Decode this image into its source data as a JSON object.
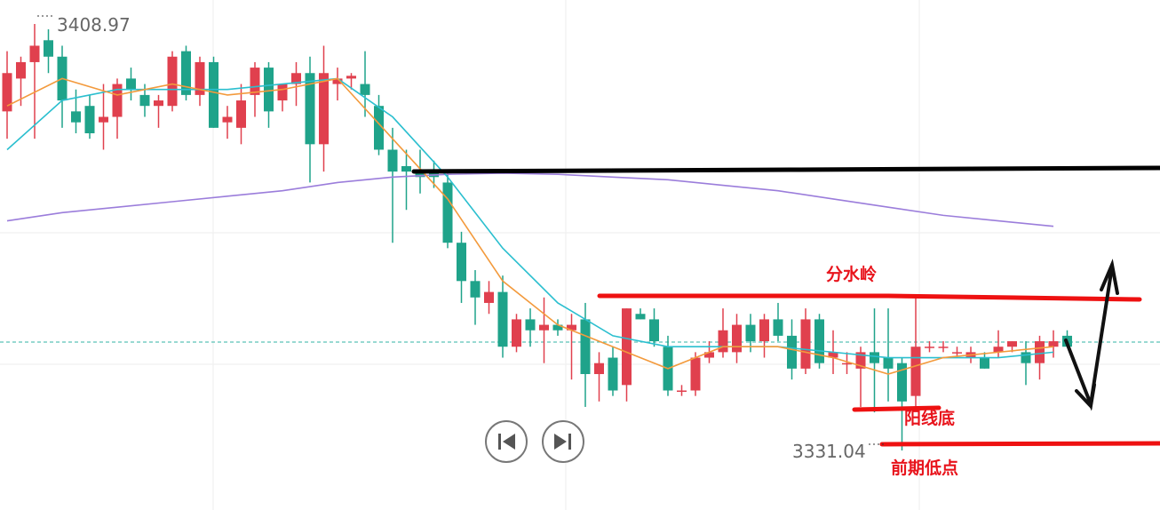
{
  "chart_data": {
    "type": "candlestick",
    "up_color": "#e0404e",
    "down_color": "#1fa38a",
    "open": [
      3393,
      3399,
      3402,
      3406,
      3403,
      3393,
      3394,
      3391,
      3392,
      3399,
      3396,
      3394,
      3394,
      3404,
      3396,
      3402,
      3391,
      3390,
      3396,
      3401,
      3395,
      3398,
      3400,
      3387,
      3398,
      3399,
      3398,
      3394,
      3386,
      3383,
      3382,
      3382,
      3380,
      3369,
      3362,
      3358,
      3360,
      3350,
      3355,
      3353,
      3354,
      3353,
      3355,
      3345,
      3348,
      3343,
      3356,
      3355,
      3350,
      3342,
      3342,
      3348,
      3349,
      3349,
      3354,
      3351,
      3355,
      3352,
      3346,
      3355,
      3348,
      3347,
      3346,
      3349,
      3348,
      3347,
      3341,
      3350,
      3350,
      3349,
      3348,
      3348,
      3349,
      3350,
      3349,
      3347,
      3350,
      3352
    ],
    "high": [
      3404,
      3403,
      3408.97,
      3408,
      3405,
      3397,
      3396,
      3398,
      3399,
      3401,
      3398,
      3396,
      3404,
      3405,
      3403,
      3403,
      3394,
      3398,
      3402,
      3402,
      3398,
      3402,
      3403,
      3405,
      3401,
      3400,
      3404,
      3396,
      3390,
      3386,
      3386,
      3384,
      3382,
      3371,
      3364,
      3362,
      3363,
      3356,
      3357,
      3359,
      3355,
      3356,
      3358,
      3349,
      3350,
      3357,
      3357,
      3357,
      3352,
      3343,
      3349,
      3351,
      3357,
      3356,
      3356,
      3356,
      3358,
      3355,
      3357,
      3356,
      3353,
      3349,
      3350,
      3357,
      3357,
      3348,
      3359,
      3351,
      3351,
      3350,
      3350,
      3349,
      3353,
      3351,
      3351,
      3352,
      3353,
      3353
    ],
    "low": [
      3388,
      3394,
      3388,
      3400,
      3390,
      3389,
      3388,
      3386,
      3388,
      3395,
      3392,
      3390,
      3393,
      3395,
      3394,
      3390,
      3388,
      3387,
      3392,
      3390,
      3393,
      3394,
      3380,
      3382,
      3395,
      3397,
      3392,
      3385,
      3369,
      3375,
      3378,
      3379,
      3368,
      3358,
      3354,
      3356,
      3348,
      3349,
      3350,
      3347,
      3352,
      3344,
      3339,
      3340,
      3341,
      3340,
      3355,
      3350,
      3341,
      3341,
      3341,
      3347,
      3348,
      3347,
      3349,
      3348,
      3351,
      3344,
      3345,
      3346,
      3345,
      3345,
      3339,
      3338,
      3340,
      3331.04,
      3339,
      3349,
      3349,
      3348,
      3347,
      3346,
      3348,
      3349,
      3343,
      3344,
      3348,
      3350
    ],
    "close": [
      3400,
      3402,
      3405,
      3403,
      3395,
      3391,
      3389,
      3392,
      3398,
      3397,
      3394,
      3395,
      3403,
      3396,
      3402,
      3390,
      3392,
      3395,
      3401,
      3393,
      3398,
      3400,
      3387,
      3400,
      3399,
      3399.5,
      3396,
      3386,
      3382,
      3382,
      3381,
      3381,
      3369,
      3362,
      3359,
      3360,
      3350,
      3355,
      3353,
      3354,
      3353,
      3354,
      3345,
      3347,
      3342,
      3357,
      3355,
      3351,
      3342,
      3342,
      3348,
      3349,
      3353,
      3354,
      3351,
      3355,
      3352,
      3346,
      3355,
      3347,
      3349,
      3347,
      3349,
      3347,
      3346,
      3340,
      3350,
      3350,
      3350,
      3349,
      3349,
      3346,
      3350,
      3351,
      3347,
      3351,
      3351,
      3350
    ],
    "lines": [
      {
        "color": "#9b7ddb",
        "x": [
          0,
          4,
          8,
          12,
          16,
          20,
          24,
          28,
          32,
          36,
          40,
          44,
          48,
          52,
          56,
          60,
          64,
          68,
          72,
          76
        ],
        "values": [
          3373,
          3374.5,
          3375.5,
          3376.5,
          3377.5,
          3378.5,
          3380,
          3381,
          3381.5,
          3381.7,
          3381.5,
          3381,
          3380.5,
          3379.5,
          3378.5,
          3377,
          3375.5,
          3374,
          3373,
          3372
        ]
      },
      {
        "color": "#2bbfcf",
        "x": [
          0,
          4,
          8,
          12,
          16,
          20,
          24,
          28,
          32,
          36,
          40,
          44,
          48,
          52,
          56,
          60,
          64,
          68,
          72,
          76
        ],
        "values": [
          3386,
          3395,
          3397,
          3397,
          3397,
          3398,
          3399,
          3392,
          3381,
          3368,
          3358,
          3352,
          3350,
          3350,
          3350,
          3349,
          3348,
          3348,
          3348,
          3349
        ]
      },
      {
        "color": "#f39a3c",
        "x": [
          0,
          4,
          8,
          12,
          16,
          20,
          24,
          28,
          32,
          36,
          40,
          44,
          48,
          52,
          56,
          60,
          64,
          68,
          72,
          76
        ],
        "values": [
          3394,
          3399,
          3396,
          3398,
          3396,
          3397,
          3399,
          3388,
          3377,
          3362,
          3354,
          3350,
          3346,
          3350,
          3350,
          3348,
          3345,
          3348,
          3349,
          3350
        ]
      }
    ],
    "annotations": [
      "分水岭",
      "阳线底",
      "前期低点"
    ]
  }
}
